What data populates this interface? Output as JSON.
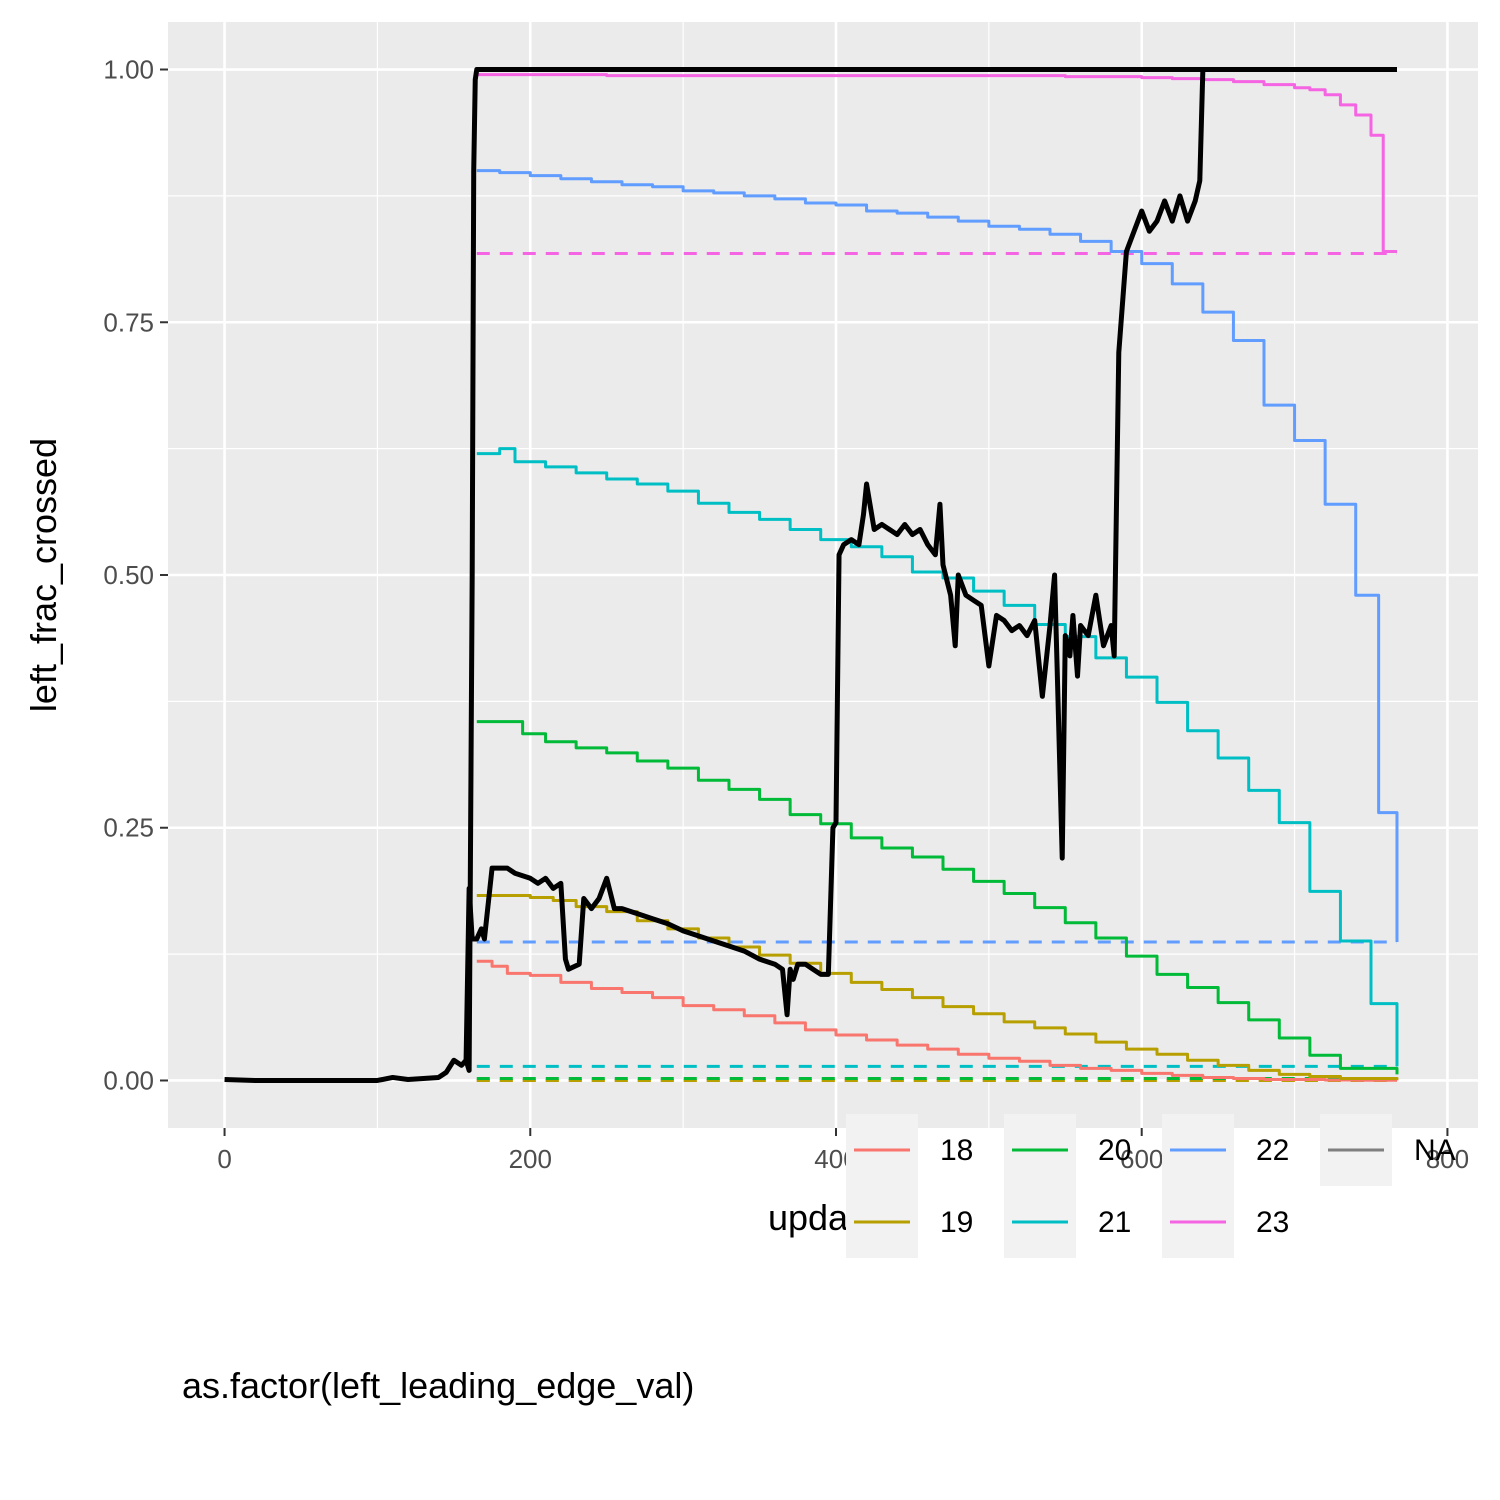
{
  "chart_data": {
    "type": "line",
    "title": "",
    "xlabel": "update",
    "ylabel": "left_frac_crossed",
    "xlim": [
      -37,
      820
    ],
    "ylim": [
      -0.047,
      1.047
    ],
    "x_ticks": [
      0,
      200,
      400,
      600,
      800
    ],
    "x_tick_labels": [
      "0",
      "200",
      "400",
      "600",
      "800"
    ],
    "y_ticks": [
      0,
      0.25,
      0.5,
      0.75,
      1.0
    ],
    "y_tick_labels": [
      "0.00",
      "0.25",
      "0.50",
      "0.75",
      "1.00"
    ],
    "grid": true,
    "legend": {
      "title": "as.factor(left_leading_edge_val)",
      "position": "bottom",
      "entries": [
        "18",
        "19",
        "20",
        "21",
        "22",
        "23",
        "NA"
      ]
    },
    "series": [
      {
        "name": "18",
        "color": "#F8766D",
        "style": "step",
        "x": [
          165,
          175,
          185,
          200,
          220,
          240,
          260,
          280,
          300,
          320,
          340,
          360,
          380,
          400,
          420,
          440,
          460,
          480,
          500,
          520,
          540,
          560,
          580,
          600,
          620,
          640,
          660,
          680,
          700,
          720,
          740,
          767
        ],
        "values": [
          0.118,
          0.113,
          0.106,
          0.104,
          0.097,
          0.091,
          0.087,
          0.082,
          0.074,
          0.07,
          0.064,
          0.057,
          0.05,
          0.045,
          0.04,
          0.035,
          0.031,
          0.026,
          0.022,
          0.019,
          0.015,
          0.012,
          0.01,
          0.007,
          0.005,
          0.003,
          0.002,
          0.001,
          0.001,
          0.0005,
          0.0002,
          0.0001
        ]
      },
      {
        "name": "19",
        "color": "#B79F00",
        "style": "step",
        "x": [
          165,
          180,
          200,
          215,
          230,
          250,
          270,
          290,
          310,
          330,
          350,
          370,
          390,
          410,
          430,
          450,
          470,
          490,
          510,
          530,
          550,
          570,
          590,
          610,
          630,
          650,
          670,
          690,
          710,
          730,
          767
        ],
        "values": [
          0.183,
          0.183,
          0.181,
          0.178,
          0.172,
          0.167,
          0.158,
          0.15,
          0.141,
          0.132,
          0.124,
          0.116,
          0.106,
          0.097,
          0.09,
          0.082,
          0.073,
          0.066,
          0.058,
          0.052,
          0.046,
          0.038,
          0.031,
          0.026,
          0.02,
          0.015,
          0.01,
          0.006,
          0.004,
          0.002,
          0.001
        ]
      },
      {
        "name": "20",
        "color": "#00BA38",
        "style": "step",
        "x": [
          165,
          180,
          195,
          210,
          230,
          250,
          270,
          290,
          310,
          330,
          350,
          370,
          390,
          410,
          430,
          450,
          470,
          490,
          510,
          530,
          550,
          570,
          590,
          610,
          630,
          650,
          670,
          690,
          710,
          730,
          767
        ],
        "values": [
          0.355,
          0.355,
          0.343,
          0.335,
          0.329,
          0.324,
          0.316,
          0.309,
          0.297,
          0.288,
          0.278,
          0.263,
          0.254,
          0.24,
          0.23,
          0.221,
          0.209,
          0.197,
          0.185,
          0.171,
          0.156,
          0.141,
          0.123,
          0.105,
          0.092,
          0.077,
          0.06,
          0.042,
          0.025,
          0.012,
          0.006
        ]
      },
      {
        "name": "21",
        "color": "#00BFC4",
        "style": "step",
        "x": [
          165,
          180,
          190,
          210,
          230,
          250,
          270,
          290,
          310,
          330,
          350,
          370,
          390,
          410,
          430,
          450,
          470,
          490,
          510,
          530,
          550,
          570,
          590,
          610,
          630,
          650,
          670,
          690,
          710,
          730,
          750,
          767
        ],
        "values": [
          0.62,
          0.625,
          0.612,
          0.607,
          0.601,
          0.595,
          0.59,
          0.583,
          0.571,
          0.562,
          0.555,
          0.545,
          0.535,
          0.528,
          0.518,
          0.503,
          0.497,
          0.484,
          0.47,
          0.451,
          0.439,
          0.418,
          0.399,
          0.374,
          0.346,
          0.319,
          0.287,
          0.255,
          0.187,
          0.138,
          0.076,
          0.014
        ]
      },
      {
        "name": "22",
        "color": "#619CFF",
        "style": "step",
        "x": [
          165,
          180,
          200,
          220,
          240,
          260,
          280,
          300,
          320,
          340,
          360,
          380,
          400,
          420,
          440,
          460,
          480,
          500,
          520,
          540,
          560,
          580,
          600,
          620,
          640,
          660,
          680,
          700,
          720,
          740,
          755,
          767
        ],
        "values": [
          0.9,
          0.898,
          0.895,
          0.892,
          0.889,
          0.886,
          0.884,
          0.88,
          0.878,
          0.875,
          0.872,
          0.868,
          0.866,
          0.86,
          0.858,
          0.854,
          0.85,
          0.845,
          0.842,
          0.837,
          0.83,
          0.82,
          0.808,
          0.788,
          0.76,
          0.732,
          0.668,
          0.633,
          0.57,
          0.48,
          0.265,
          0.137
        ]
      },
      {
        "name": "23",
        "color": "#F564E3",
        "style": "step",
        "x": [
          165,
          250,
          350,
          450,
          550,
          600,
          620,
          640,
          660,
          680,
          700,
          710,
          720,
          730,
          740,
          750,
          758,
          767
        ],
        "values": [
          0.995,
          0.994,
          0.994,
          0.994,
          0.993,
          0.992,
          0.991,
          0.99,
          0.988,
          0.985,
          0.982,
          0.98,
          0.975,
          0.965,
          0.955,
          0.935,
          0.82,
          0.82
        ]
      },
      {
        "name": "18",
        "color": "#F8766D",
        "style": "dashed",
        "x": [
          165,
          767
        ],
        "values": [
          0.0,
          0.0
        ]
      },
      {
        "name": "19",
        "color": "#B79F00",
        "style": "dashed",
        "x": [
          165,
          767
        ],
        "values": [
          0.0,
          0.0
        ]
      },
      {
        "name": "20",
        "color": "#00BA38",
        "style": "dashed",
        "x": [
          165,
          767
        ],
        "values": [
          0.002,
          0.002
        ]
      },
      {
        "name": "21",
        "color": "#00BFC4",
        "style": "dashed",
        "x": [
          165,
          767
        ],
        "values": [
          0.014,
          0.014
        ]
      },
      {
        "name": "22",
        "color": "#619CFF",
        "style": "dashed",
        "x": [
          165,
          767
        ],
        "values": [
          0.137,
          0.137
        ]
      },
      {
        "name": "23",
        "color": "#F564E3",
        "style": "dashed",
        "x": [
          165,
          767
        ],
        "values": [
          0.818,
          0.818
        ]
      },
      {
        "name": "NA",
        "color": "#000000",
        "style": "solid",
        "x": [
          0,
          20,
          40,
          60,
          80,
          100,
          110,
          120,
          130,
          140,
          145,
          150,
          155,
          158,
          160,
          162,
          163,
          164,
          165,
          767
        ],
        "values": [
          0.001,
          0.0,
          0.0,
          0.0,
          0.0,
          0.0,
          0.003,
          0.001,
          0.002,
          0.003,
          0.008,
          0.02,
          0.015,
          0.02,
          0.01,
          0.5,
          0.9,
          0.99,
          1.0,
          1.0
        ]
      },
      {
        "name": "NA",
        "color": "#000000",
        "style": "solid",
        "x": [
          158,
          160,
          162,
          165,
          168,
          170,
          175,
          178,
          185,
          190,
          200,
          205,
          210,
          215,
          220,
          223,
          225,
          232,
          235,
          240,
          245,
          250,
          255,
          260,
          270,
          280,
          290,
          300,
          310,
          320,
          330,
          340,
          350,
          360,
          365,
          368,
          370,
          372,
          375,
          380,
          385,
          390,
          395,
          398,
          400,
          402,
          405,
          410,
          415,
          418,
          420,
          425,
          430,
          435,
          440,
          445,
          450,
          455,
          460,
          465,
          468,
          470,
          475,
          478,
          480,
          485,
          490,
          495,
          500,
          505,
          510,
          515,
          520,
          525,
          530,
          535,
          540,
          543,
          545,
          548,
          550,
          553,
          555,
          558,
          560,
          565,
          570,
          575,
          580,
          582,
          585,
          590,
          595,
          600,
          605,
          610,
          615,
          620,
          625,
          630,
          635,
          638,
          640,
          645,
          650,
          700,
          767
        ],
        "values": [
          0.02,
          0.19,
          0.14,
          0.14,
          0.15,
          0.14,
          0.21,
          0.21,
          0.21,
          0.205,
          0.2,
          0.195,
          0.2,
          0.19,
          0.195,
          0.12,
          0.11,
          0.115,
          0.18,
          0.17,
          0.18,
          0.2,
          0.17,
          0.17,
          0.165,
          0.16,
          0.155,
          0.148,
          0.143,
          0.138,
          0.133,
          0.128,
          0.12,
          0.115,
          0.11,
          0.065,
          0.11,
          0.1,
          0.115,
          0.115,
          0.11,
          0.105,
          0.105,
          0.25,
          0.255,
          0.52,
          0.53,
          0.535,
          0.53,
          0.56,
          0.59,
          0.545,
          0.55,
          0.545,
          0.54,
          0.55,
          0.54,
          0.545,
          0.53,
          0.52,
          0.57,
          0.51,
          0.48,
          0.43,
          0.5,
          0.48,
          0.475,
          0.47,
          0.41,
          0.46,
          0.455,
          0.445,
          0.45,
          0.44,
          0.455,
          0.38,
          0.45,
          0.5,
          0.39,
          0.22,
          0.44,
          0.42,
          0.46,
          0.4,
          0.45,
          0.44,
          0.48,
          0.43,
          0.45,
          0.42,
          0.72,
          0.82,
          0.84,
          0.86,
          0.84,
          0.85,
          0.87,
          0.85,
          0.875,
          0.85,
          0.87,
          0.89,
          1.0,
          1.0,
          1.0,
          1.0,
          1.0
        ]
      }
    ]
  }
}
